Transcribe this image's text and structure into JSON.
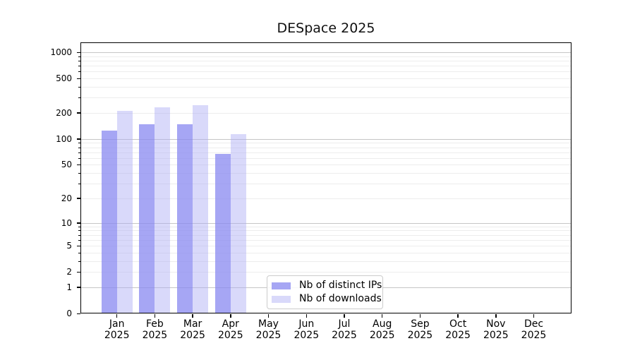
{
  "chart_data": {
    "type": "bar",
    "title": "DESpace 2025",
    "y_scale": "log10(1+y)",
    "year": "2025",
    "categories": [
      "Jan",
      "Feb",
      "Mar",
      "Apr",
      "May",
      "Jun",
      "Jul",
      "Aug",
      "Sep",
      "Oct",
      "Nov",
      "Dec"
    ],
    "series": [
      {
        "name": "Nb of distinct IPs",
        "color": "#a6a6f4",
        "values": [
          124,
          147,
          147,
          67,
          null,
          null,
          null,
          null,
          null,
          null,
          null,
          null
        ]
      },
      {
        "name": "Nb of downloads",
        "color": "#d9d9fa",
        "values": [
          210,
          233,
          247,
          114,
          null,
          null,
          null,
          null,
          null,
          null,
          null,
          null
        ]
      }
    ],
    "yticks": [
      0,
      1,
      2,
      5,
      10,
      20,
      50,
      100,
      200,
      500,
      1000
    ],
    "ylim": [
      0,
      1250
    ],
    "grid": {
      "major_color": "#c6c6c6",
      "minor_color": "#ededed",
      "minor_on": true
    },
    "legend": {
      "position": "lower center",
      "border_color": "#cccccc"
    }
  }
}
